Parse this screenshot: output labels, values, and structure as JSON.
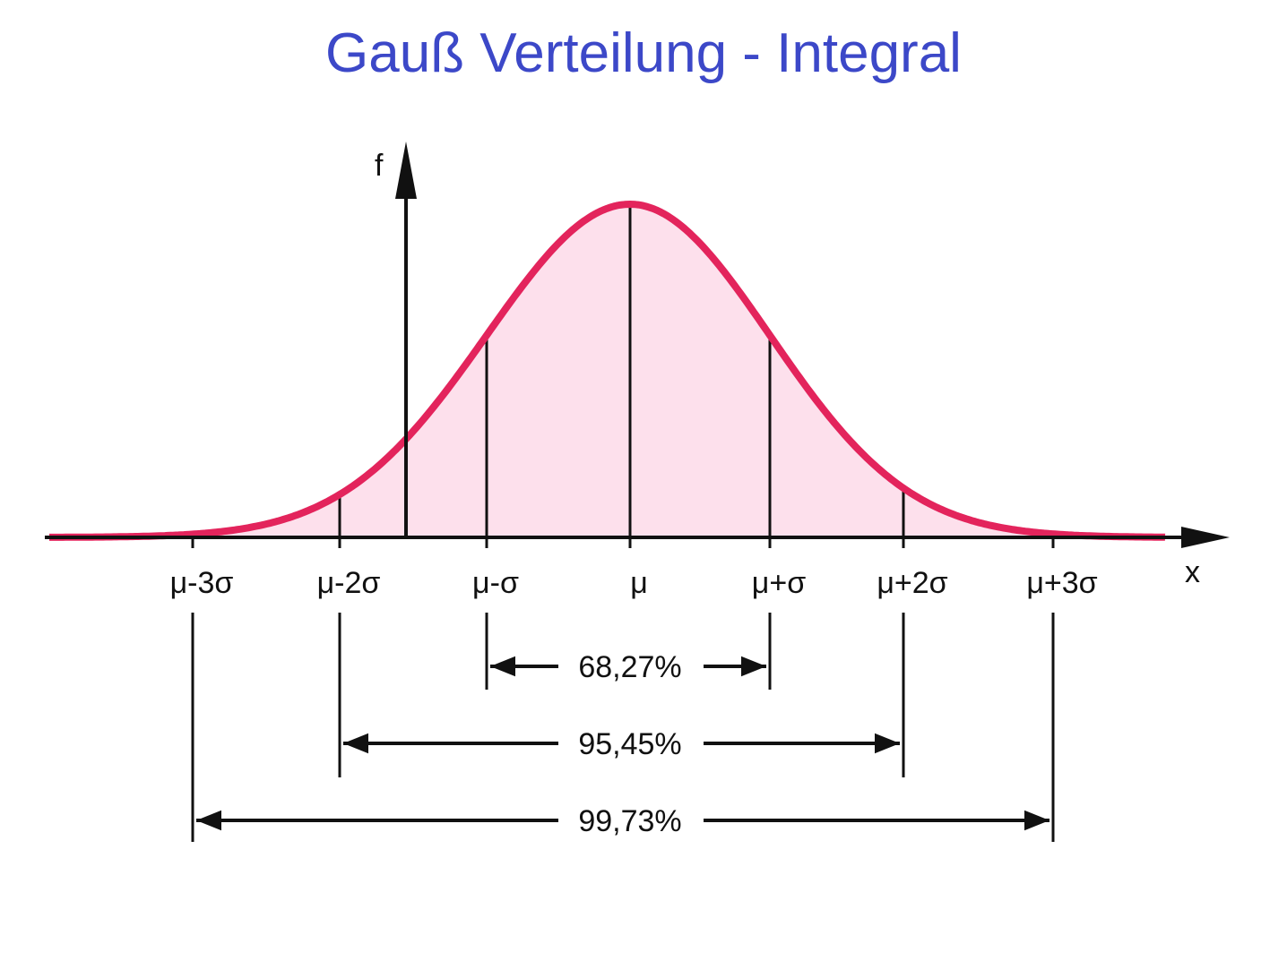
{
  "title": "Gauß Verteilung - Integral",
  "axes": {
    "y_label": "f",
    "x_label": "x"
  },
  "ticks": [
    {
      "label": "μ-3σ",
      "k": -3
    },
    {
      "label": "μ-2σ",
      "k": -2
    },
    {
      "label": "μ-σ",
      "k": -1
    },
    {
      "label": "μ",
      "k": 0
    },
    {
      "label": "μ+σ",
      "k": 1
    },
    {
      "label": "μ+2σ",
      "k": 2
    },
    {
      "label": "μ+3σ",
      "k": 3
    }
  ],
  "intervals": [
    {
      "label": "68,27%",
      "k": 1
    },
    {
      "label": "95,45%",
      "k": 2
    },
    {
      "label": "99,73%",
      "k": 3
    }
  ],
  "colors": {
    "curve": "#e3245c",
    "fill": "#fde0ec",
    "title": "#3c48c8",
    "ink": "#111111"
  }
}
